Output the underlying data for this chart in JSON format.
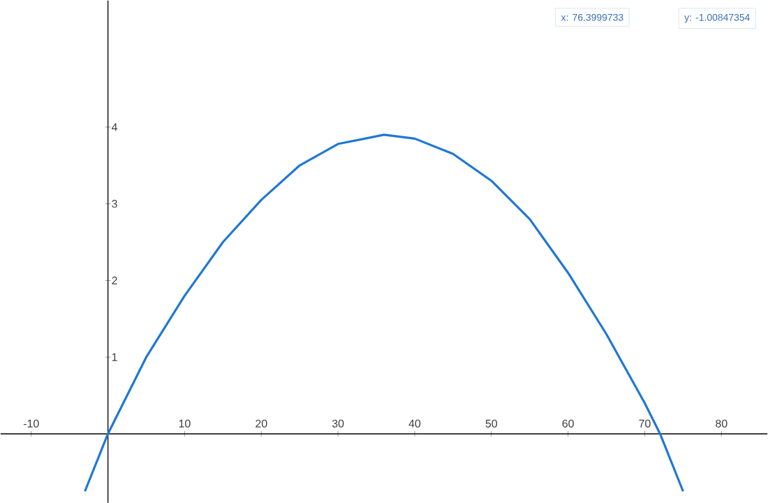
{
  "chart_data": {
    "type": "line",
    "x": [
      -3,
      0,
      5,
      10,
      15,
      20,
      25,
      30,
      36,
      40,
      45,
      50,
      55,
      60,
      65,
      70,
      72,
      75
    ],
    "values": [
      -0.75,
      0,
      1.0,
      1.8,
      2.5,
      3.05,
      3.5,
      3.78,
      3.9,
      3.85,
      3.65,
      3.3,
      2.8,
      2.1,
      1.3,
      0.4,
      0,
      -0.75
    ],
    "color": "#1f77d6",
    "xlim": [
      -14,
      86
    ],
    "ylim": [
      -0.9,
      5.65
    ],
    "xticks": [
      -10,
      10,
      20,
      30,
      40,
      50,
      60,
      70,
      80
    ],
    "yticks": [
      1,
      2,
      3,
      4
    ],
    "grid": false,
    "marker": "none",
    "line_style": "solid",
    "annotations": [
      "x: 76.3999733",
      "y: -1.00847354"
    ]
  }
}
